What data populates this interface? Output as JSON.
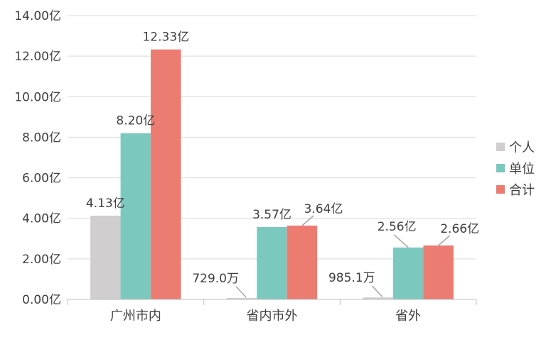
{
  "chart_data": {
    "type": "bar",
    "categories": [
      "广州市内",
      "省内市外",
      "省外"
    ],
    "series": [
      {
        "name": "个人",
        "color": "#d0cecf",
        "values": [
          4.13,
          0.0729,
          0.09851
        ],
        "labels": [
          "4.13亿",
          "729.0万",
          "985.1万"
        ]
      },
      {
        "name": "单位",
        "color": "#7bc8be",
        "values": [
          8.2,
          3.57,
          2.56
        ],
        "labels": [
          "8.20亿",
          "3.57亿",
          "2.56亿"
        ]
      },
      {
        "name": "合计",
        "color": "#ec7b72",
        "values": [
          12.33,
          3.64,
          2.66
        ],
        "labels": [
          "12.33亿",
          "3.64亿",
          "2.66亿"
        ]
      }
    ],
    "ylim": [
      0,
      14
    ],
    "yticks": [
      0,
      2,
      4,
      6,
      8,
      10,
      12,
      14
    ],
    "ytick_labels": [
      "0.00亿",
      "2.00亿",
      "4.00亿",
      "6.00亿",
      "8.00亿",
      "10.00亿",
      "12.00亿",
      "14.00亿"
    ],
    "grid": true,
    "legend_position": "right",
    "xlabel": "",
    "ylabel": ""
  }
}
